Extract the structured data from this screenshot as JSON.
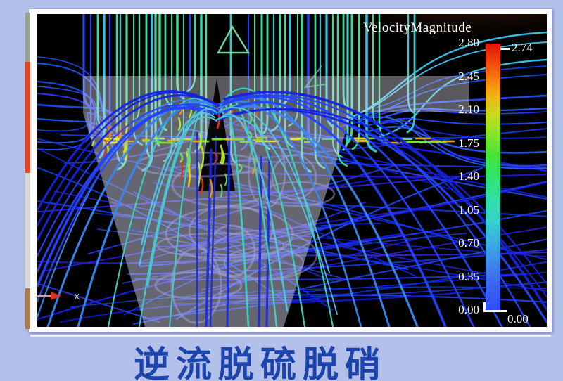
{
  "legend": {
    "title": "VelocityMagnitude",
    "ticks": [
      "2.80",
      "2.45",
      "2.10",
      "1.75",
      "1.40",
      "1.05",
      "0.70",
      "0.35",
      "0.00"
    ],
    "max_label": "2.74",
    "min_label": "0.00"
  },
  "axis_indicator": {
    "x_label": "x"
  },
  "caption": "逆流脱硫脱硝",
  "colors": {
    "page_background": "#b2c0ea",
    "caption_text": "#1d44ad",
    "viz_background": "#000000",
    "legend_text": "#ffffff",
    "colorbar_stops_top_to_bottom": [
      "#e01208",
      "#f8840e",
      "#c6dc1e",
      "#44e438",
      "#2ee46e",
      "#36d2cb",
      "#3bb0e0",
      "#2e4ef8"
    ]
  },
  "chart_data": {
    "type": "streamline-flow-visualization",
    "title": "VelocityMagnitude",
    "caption": "逆流脱硫脱硝",
    "colorbar": {
      "label": "VelocityMagnitude",
      "scale_min": 0.0,
      "scale_max": 2.8,
      "tick_interval": 0.35,
      "ticks": [
        2.8,
        2.45,
        2.1,
        1.75,
        1.4,
        1.05,
        0.7,
        0.35,
        0.0
      ],
      "data_max_marker": 2.74,
      "data_min_marker": 0.0,
      "colormap": "rainbow: blue (low) to green to red (high)",
      "orientation": "vertical",
      "position": "right"
    },
    "scene": "counter-flow scrubber vessel: streamlines enter from top (green/cyan), impinge above a translucent conical funnel and fountain outward as blue arcs"
  }
}
